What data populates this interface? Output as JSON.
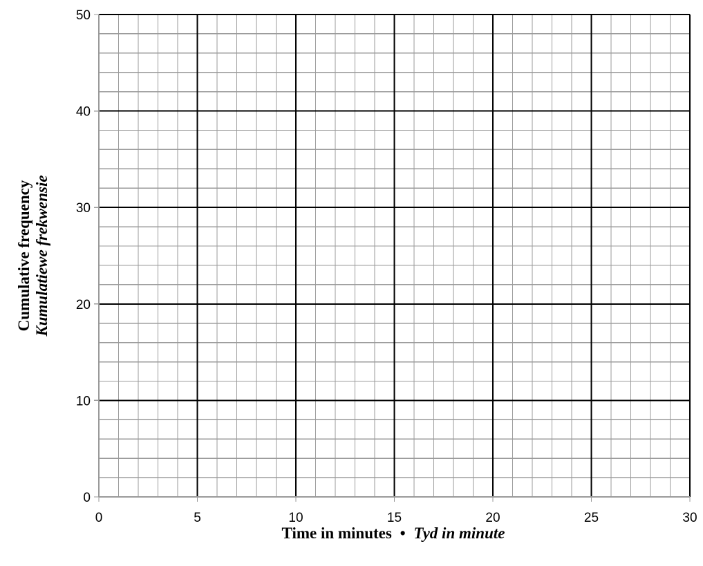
{
  "chart_data": {
    "type": "line",
    "title": "",
    "x_axis": {
      "label_en": "Time in minutes",
      "separator": "•",
      "label_af": "Tyd in minute",
      "range": [
        0,
        30
      ],
      "major_step": 5,
      "minor_step": 1,
      "ticks": [
        0,
        5,
        10,
        15,
        20,
        25,
        30
      ]
    },
    "y_axis": {
      "label_en": "Cumulative frequency",
      "label_af": "Kumulatiewe frekwensie",
      "range": [
        0,
        50
      ],
      "major_step": 10,
      "minor_step": 2,
      "ticks": [
        0,
        10,
        20,
        30,
        40,
        50
      ]
    },
    "series": [],
    "grid": true
  },
  "colors": {
    "minor_grid": "#9a9a9a",
    "major_grid": "#000000",
    "text": "#000000"
  }
}
